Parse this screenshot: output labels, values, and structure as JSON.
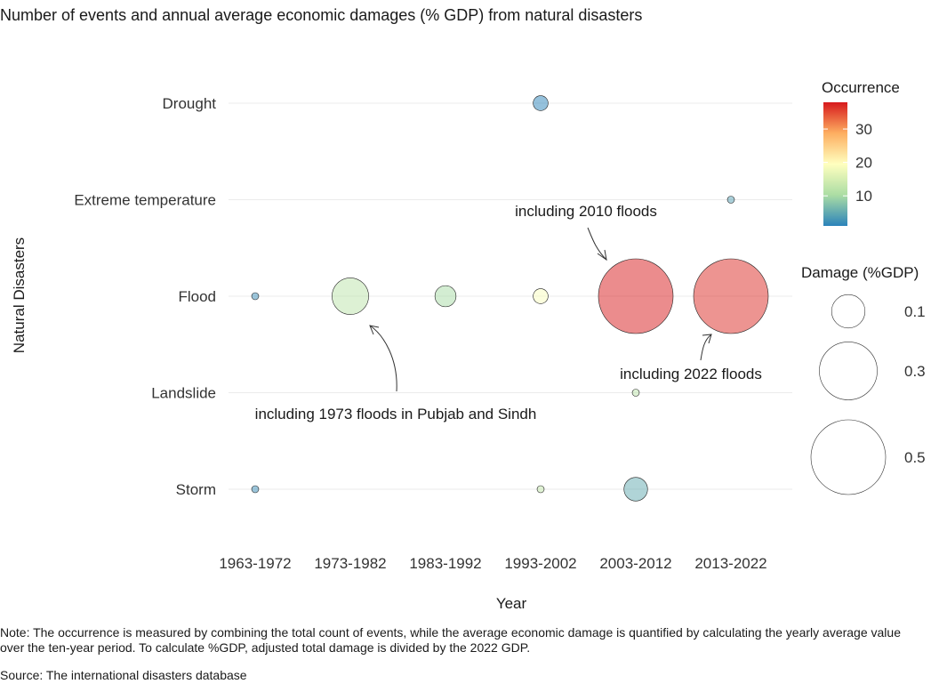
{
  "chart_data": {
    "type": "scatter",
    "title": "Number of events and annual average economic damages (% GDP) from natural disasters",
    "xlabel": "Year",
    "ylabel": "Natural Disasters",
    "x_categories": [
      "1963-1972",
      "1973-1982",
      "1983-1992",
      "1993-2002",
      "2003-2012",
      "2013-2022"
    ],
    "y_categories": [
      "Drought",
      "Extreme temperature",
      "Flood",
      "Landslide",
      "Storm"
    ],
    "grid": true,
    "points": [
      {
        "disaster": "Drought",
        "period": "1993-2002",
        "occurrence": 1,
        "damage": 0.02
      },
      {
        "disaster": "Extreme temperature",
        "period": "2013-2022",
        "occurrence": 4,
        "damage": 0.003
      },
      {
        "disaster": "Flood",
        "period": "1963-1972",
        "occurrence": 2,
        "damage": 0.003
      },
      {
        "disaster": "Flood",
        "period": "1973-1982",
        "occurrence": 12,
        "damage": 0.12
      },
      {
        "disaster": "Flood",
        "period": "1983-1992",
        "occurrence": 10,
        "damage": 0.04
      },
      {
        "disaster": "Flood",
        "period": "1993-2002",
        "occurrence": 19,
        "damage": 0.02
      },
      {
        "disaster": "Flood",
        "period": "2003-2012",
        "occurrence": 38,
        "damage": 0.5
      },
      {
        "disaster": "Flood",
        "period": "2013-2022",
        "occurrence": 37,
        "damage": 0.5
      },
      {
        "disaster": "Landslide",
        "period": "2003-2012",
        "occurrence": 12,
        "damage": 0.002
      },
      {
        "disaster": "Storm",
        "period": "1963-1972",
        "occurrence": 2,
        "damage": 0.003
      },
      {
        "disaster": "Storm",
        "period": "1993-2002",
        "occurrence": 13,
        "damage": 0.002
      },
      {
        "disaster": "Storm",
        "period": "2003-2012",
        "occurrence": 5,
        "damage": 0.05
      }
    ],
    "color_legend": {
      "title": "Occurrence",
      "ticks": [
        "10",
        "20",
        "30"
      ],
      "tick_values": [
        10,
        20,
        30
      ],
      "range": [
        1,
        38
      ],
      "palette": [
        "#2b83ba",
        "#abdda4",
        "#ffffbf",
        "#fdae61",
        "#d7191c"
      ],
      "placement": "right"
    },
    "size_legend": {
      "title": "Damage (%GDP)",
      "labels": [
        "0.1",
        "0.3",
        "0.5"
      ],
      "values": [
        0.1,
        0.3,
        0.5
      ],
      "placement": "right"
    },
    "annotations": [
      {
        "text": "including 2010 floods",
        "disaster": "Flood",
        "period": "2003-2012"
      },
      {
        "text": "including 2022 floods",
        "disaster": "Flood",
        "period": "2013-2022"
      },
      {
        "text": "including 1973 floods in Pubjab and Sindh",
        "disaster": "Flood",
        "period": "1973-1982"
      }
    ]
  },
  "note": "Note: The occurrence is measured by combining the total count of events, while the average economic damage is quantified by calculating the yearly average value over the ten-year period. To calculate %GDP, adjusted total damage is divided by the 2022 GDP.",
  "source": "Source: The international disasters database"
}
